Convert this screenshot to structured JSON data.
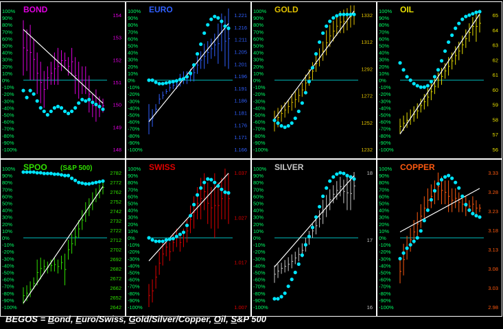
{
  "colors": {
    "background": "#000000",
    "panel_border": "#ffffff",
    "zero_line": "#00c0c0",
    "dots": "#00e5ff",
    "trend_line": "#ffffff",
    "pct_labels": "#00ff66",
    "bond": "#e000e0",
    "euro": "#3060ff",
    "gold": "#e0c000",
    "oil": "#e8e000",
    "spoo": "#30e000",
    "swiss": "#e00000",
    "silver": "#c8c8c8",
    "copper": "#ff5a10"
  },
  "chart_data": [
    {
      "type": "bar",
      "title": "BOND",
      "subtitle": "",
      "color_key": "bond",
      "left_ticks": [
        "100%",
        "90%",
        "80%",
        "70%",
        "60%",
        "50%",
        "40%",
        "30%",
        "20%",
        "10%",
        "0%",
        "-10%",
        "-20%",
        "-30%",
        "-40%",
        "-50%",
        "-60%",
        "-70%",
        "-80%",
        "-90%",
        "-100%"
      ],
      "right_ticks": [
        "154",
        "153",
        "152",
        "151",
        "150",
        "149",
        "148"
      ],
      "ylim": [
        148,
        154
      ],
      "bars": [
        [
          153.6,
          151.2
        ],
        [
          153.2,
          151.4
        ],
        [
          153.4,
          151.0
        ],
        [
          152.8,
          151.0
        ],
        [
          152.2,
          150.4
        ],
        [
          151.8,
          150.0
        ],
        [
          151.4,
          149.8
        ],
        [
          151.6,
          150.6
        ],
        [
          151.8,
          150.8
        ],
        [
          152.2,
          150.8
        ],
        [
          152.4,
          150.8
        ],
        [
          152.3,
          151.4
        ],
        [
          152.2,
          151.5
        ],
        [
          152.0,
          151.2
        ],
        [
          152.4,
          151.2
        ],
        [
          152.0,
          150.4
        ],
        [
          151.8,
          150.2
        ],
        [
          151.6,
          150.4
        ],
        [
          151.6,
          150.4
        ],
        [
          151.2,
          149.6
        ],
        [
          150.4,
          149.4
        ],
        [
          150.6,
          149.2
        ],
        [
          150.3,
          149.4
        ],
        [
          150.2,
          149.6
        ]
      ],
      "dots": [
        -15,
        -25,
        -15,
        -20,
        -30,
        -40,
        -45,
        -50,
        -45,
        -40,
        -38,
        -40,
        -45,
        -48,
        -45,
        -40,
        -33,
        -28,
        -30,
        -28,
        -32,
        -35,
        -38,
        -42
      ],
      "trend": [
        153.2,
        150.0
      ]
    },
    {
      "type": "bar",
      "title": "EURO",
      "subtitle": "",
      "color_key": "euro",
      "left_ticks": [
        "100%",
        "90%",
        "80%",
        "70%",
        "60%",
        "50%",
        "40%",
        "30%",
        "20%",
        "10%",
        "0%",
        "-10%",
        "-20%",
        "-30%",
        "-40%",
        "-50%",
        "-60%",
        "-70%",
        "-80%",
        "-90%",
        "-100%"
      ],
      "right_ticks": [
        "1.221",
        "1.216",
        "1.211",
        "1.205",
        "1.201",
        "1.196",
        "1.191",
        "1.186",
        "1.181",
        "1.176",
        "1.171",
        "1.166"
      ],
      "ylim": [
        1.166,
        1.221
      ],
      "bars": [
        [
          1.184,
          1.172
        ],
        [
          1.182,
          1.175
        ],
        [
          1.184,
          1.18
        ],
        [
          1.188,
          1.184
        ],
        [
          1.189,
          1.186
        ],
        [
          1.19,
          1.188
        ],
        [
          1.192,
          1.189
        ],
        [
          1.193,
          1.19
        ],
        [
          1.194,
          1.19
        ],
        [
          1.196,
          1.191
        ],
        [
          1.197,
          1.192
        ],
        [
          1.197,
          1.192
        ],
        [
          1.198,
          1.193
        ],
        [
          1.2,
          1.193
        ],
        [
          1.203,
          1.196
        ],
        [
          1.205,
          1.198
        ],
        [
          1.208,
          1.198
        ],
        [
          1.209,
          1.2
        ],
        [
          1.21,
          1.202
        ],
        [
          1.212,
          1.203
        ],
        [
          1.216,
          1.2
        ],
        [
          1.22,
          1.205
        ],
        [
          1.219,
          1.199
        ],
        [
          1.222,
          1.198
        ]
      ],
      "dots": [
        0,
        0,
        -3,
        -5,
        -5,
        -4,
        -3,
        -2,
        -1,
        1,
        2,
        5,
        10,
        22,
        38,
        52,
        68,
        80,
        88,
        92,
        90,
        85,
        78,
        75
      ],
      "trend": [
        1.177,
        1.216
      ]
    },
    {
      "type": "bar",
      "title": "GOLD",
      "subtitle": "",
      "color_key": "gold",
      "left_ticks": [
        "100%",
        "90%",
        "80%",
        "70%",
        "60%",
        "50%",
        "40%",
        "30%",
        "20%",
        "10%",
        "0%",
        "-10%",
        "-20%",
        "-30%",
        "-40%",
        "-50%",
        "-60%",
        "-70%",
        "-80%",
        "-90%",
        "-100%"
      ],
      "right_ticks": [
        "1332",
        "1312",
        "1292",
        "1272",
        "1252",
        "1232"
      ],
      "ylim": [
        1232,
        1332
      ],
      "bars": [
        [
          1260,
          1245
        ],
        [
          1262,
          1248
        ],
        [
          1264,
          1252
        ],
        [
          1266,
          1255
        ],
        [
          1268,
          1258
        ],
        [
          1272,
          1260
        ],
        [
          1274,
          1262
        ],
        [
          1276,
          1266
        ],
        [
          1280,
          1270
        ],
        [
          1286,
          1274
        ],
        [
          1290,
          1278
        ],
        [
          1295,
          1282
        ],
        [
          1300,
          1288
        ],
        [
          1305,
          1292
        ],
        [
          1310,
          1296
        ],
        [
          1318,
          1300
        ],
        [
          1322,
          1306
        ],
        [
          1325,
          1310
        ],
        [
          1328,
          1314
        ],
        [
          1332,
          1316
        ],
        [
          1333,
          1316
        ],
        [
          1334,
          1318
        ],
        [
          1336,
          1320
        ],
        [
          1336,
          1322
        ]
      ],
      "dots": [
        -58,
        -62,
        -66,
        -68,
        -66,
        -62,
        -55,
        -45,
        -33,
        -18,
        -2,
        18,
        38,
        55,
        68,
        78,
        85,
        90,
        93,
        95,
        95,
        95,
        95,
        95
      ],
      "trend": [
        1254,
        1332
      ]
    },
    {
      "type": "bar",
      "title": "OIL",
      "subtitle": "",
      "color_key": "oil",
      "left_ticks": [
        "100%",
        "90%",
        "80%",
        "70%",
        "60%",
        "50%",
        "40%",
        "30%",
        "20%",
        "10%",
        "0%",
        "-10%",
        "-20%",
        "-30%",
        "-40%",
        "-50%",
        "-60%",
        "-70%",
        "-80%",
        "-90%",
        "-100%"
      ],
      "right_ticks": [
        "65",
        "64",
        "63",
        "62",
        "61",
        "60",
        "59",
        "58",
        "57",
        "56"
      ],
      "ylim": [
        56,
        65
      ],
      "bars": [
        [
          58.0,
          57.0
        ],
        [
          58.2,
          57.2
        ],
        [
          58.4,
          57.4
        ],
        [
          58.6,
          57.6
        ],
        [
          58.8,
          57.8
        ],
        [
          59.0,
          58.0
        ],
        [
          59.3,
          58.4
        ],
        [
          59.6,
          58.6
        ],
        [
          60.0,
          58.8
        ],
        [
          60.3,
          59.2
        ],
        [
          60.6,
          59.6
        ],
        [
          61.0,
          60.0
        ],
        [
          61.3,
          60.2
        ],
        [
          61.6,
          60.6
        ],
        [
          62.0,
          60.8
        ],
        [
          62.3,
          61.2
        ],
        [
          62.7,
          61.5
        ],
        [
          63.0,
          61.8
        ],
        [
          63.4,
          62.2
        ],
        [
          63.8,
          62.6
        ],
        [
          64.2,
          63.0
        ],
        [
          64.6,
          63.4
        ],
        [
          65.0,
          63.0
        ],
        [
          64.8,
          63.6
        ]
      ],
      "dots": [
        25,
        15,
        5,
        0,
        -5,
        -8,
        -10,
        -10,
        -8,
        -2,
        5,
        15,
        28,
        42,
        55,
        65,
        75,
        82,
        88,
        92,
        94,
        96,
        98,
        99
      ],
      "trend": [
        57.0,
        64.8
      ]
    },
    {
      "type": "bar",
      "title": "SPOO",
      "subtitle": "(S&P 500)",
      "color_key": "spoo",
      "left_ticks": [
        "100%",
        "90%",
        "80%",
        "70%",
        "60%",
        "50%",
        "40%",
        "30%",
        "20%",
        "10%",
        "0%",
        "-10%",
        "-20%",
        "-30%",
        "-40%",
        "-50%",
        "-60%",
        "-70%",
        "-80%",
        "-90%",
        "-100%"
      ],
      "right_ticks": [
        "2782",
        "2772",
        "2762",
        "2752",
        "2742",
        "2732",
        "2722",
        "2712",
        "2702",
        "2692",
        "2682",
        "2672",
        "2662",
        "2652",
        "2642"
      ],
      "ylim": [
        2642,
        2782
      ],
      "bars": [
        [
          2662,
          2645
        ],
        [
          2664,
          2648
        ],
        [
          2668,
          2652
        ],
        [
          2672,
          2660
        ],
        [
          2690,
          2664
        ],
        [
          2692,
          2670
        ],
        [
          2690,
          2676
        ],
        [
          2688,
          2676
        ],
        [
          2690,
          2678
        ],
        [
          2692,
          2678
        ],
        [
          2690,
          2676
        ],
        [
          2694,
          2680
        ],
        [
          2696,
          2664
        ],
        [
          2710,
          2690
        ],
        [
          2716,
          2696
        ],
        [
          2722,
          2704
        ],
        [
          2730,
          2712
        ],
        [
          2740,
          2720
        ],
        [
          2748,
          2728
        ],
        [
          2752,
          2734
        ],
        [
          2758,
          2740
        ],
        [
          2762,
          2748
        ],
        [
          2766,
          2752
        ],
        [
          2770,
          2756
        ]
      ],
      "dots": [
        95,
        95,
        95,
        95,
        94,
        94,
        93,
        93,
        93,
        92,
        92,
        91,
        90,
        90,
        86,
        83,
        80,
        79,
        78,
        78,
        79,
        80,
        81,
        82
      ],
      "trend": [
        2646,
        2764
      ]
    },
    {
      "type": "bar",
      "title": "SWISS",
      "subtitle": "",
      "color_key": "swiss",
      "left_ticks": [
        "100%",
        "90%",
        "80%",
        "70%",
        "60%",
        "50%",
        "40%",
        "30%",
        "20%",
        "10%",
        "0%",
        "-10%",
        "-20%",
        "-30%",
        "-40%",
        "-50%",
        "-60%",
        "-70%",
        "-80%",
        "-90%",
        "-100%"
      ],
      "right_ticks": [
        "1.037",
        "1.027",
        "1.017",
        "1.007"
      ],
      "ylim": [
        1.007,
        1.037
      ],
      "bars": [
        [
          1.012,
          1.007
        ],
        [
          1.013,
          1.008
        ],
        [
          1.016,
          1.011
        ],
        [
          1.019,
          1.014
        ],
        [
          1.021,
          1.016
        ],
        [
          1.022,
          1.018
        ],
        [
          1.021,
          1.017
        ],
        [
          1.023,
          1.019
        ],
        [
          1.024,
          1.02
        ],
        [
          1.023,
          1.019
        ],
        [
          1.024,
          1.02
        ],
        [
          1.026,
          1.021
        ],
        [
          1.029,
          1.023
        ],
        [
          1.031,
          1.024
        ],
        [
          1.033,
          1.026
        ],
        [
          1.035,
          1.026
        ],
        [
          1.036,
          1.028
        ],
        [
          1.034,
          1.025
        ],
        [
          1.033,
          1.024
        ],
        [
          1.036,
          1.022
        ],
        [
          1.034,
          1.024
        ],
        [
          1.035,
          1.026
        ],
        [
          1.037,
          1.026
        ],
        [
          1.036,
          1.025
        ]
      ],
      "dots": [
        0,
        -3,
        -5,
        -5,
        -5,
        -3,
        -2,
        -1,
        2,
        5,
        8,
        18,
        32,
        48,
        62,
        72,
        80,
        85,
        84,
        80,
        75,
        70,
        66,
        65
      ],
      "trend": [
        1.017,
        1.036
      ]
    },
    {
      "type": "bar",
      "title": "SILVER",
      "subtitle": "",
      "color_key": "silver",
      "left_ticks": [
        "100%",
        "90%",
        "80%",
        "70%",
        "60%",
        "50%",
        "40%",
        "30%",
        "20%",
        "10%",
        "0%",
        "-10%",
        "-20%",
        "-30%",
        "-40%",
        "-50%",
        "-60%",
        "-70%",
        "-80%",
        "-90%",
        "-100%"
      ],
      "right_ticks": [
        "18",
        "17",
        "16"
      ],
      "ylim": [
        16,
        18
      ],
      "bars": [
        [
          16.6,
          16.35
        ],
        [
          16.62,
          16.42
        ],
        [
          16.64,
          16.48
        ],
        [
          16.68,
          16.5
        ],
        [
          16.72,
          16.52
        ],
        [
          16.76,
          16.56
        ],
        [
          16.8,
          16.62
        ],
        [
          16.86,
          16.66
        ],
        [
          16.92,
          16.72
        ],
        [
          17.0,
          16.8
        ],
        [
          17.1,
          16.9
        ],
        [
          17.2,
          17.0
        ],
        [
          17.3,
          17.05
        ],
        [
          17.4,
          17.15
        ],
        [
          17.55,
          17.2
        ],
        [
          17.62,
          17.3
        ],
        [
          17.7,
          17.4
        ],
        [
          17.76,
          17.5
        ],
        [
          17.82,
          17.55
        ],
        [
          17.88,
          17.6
        ],
        [
          17.84,
          17.5
        ],
        [
          17.9,
          17.4
        ],
        [
          17.88,
          17.4
        ],
        [
          17.95,
          17.55
        ]
      ],
      "dots": [
        -88,
        -88,
        -85,
        -80,
        -70,
        -60,
        -50,
        -38,
        -25,
        -10,
        2,
        15,
        30,
        45,
        60,
        72,
        82,
        88,
        92,
        94,
        93,
        90,
        88,
        85
      ],
      "trend": [
        16.58,
        17.9
      ]
    },
    {
      "type": "bar",
      "title": "COPPER",
      "subtitle": "",
      "color_key": "copper",
      "left_ticks": [
        "100%",
        "90%",
        "80%",
        "70%",
        "60%",
        "50%",
        "40%",
        "30%",
        "20%",
        "10%",
        "0%",
        "-10%",
        "-20%",
        "-30%",
        "-40%",
        "-50%",
        "-60%",
        "-70%",
        "-80%",
        "-90%",
        "-100%"
      ],
      "right_ticks": [
        "3.33",
        "3.28",
        "3.23",
        "3.18",
        "3.13",
        "3.08",
        "3.03",
        "2.98"
      ],
      "ylim": [
        2.98,
        3.33
      ],
      "bars": [
        [
          3.1,
          3.04
        ],
        [
          3.14,
          3.06
        ],
        [
          3.16,
          3.1
        ],
        [
          3.18,
          3.12
        ],
        [
          3.2,
          3.14
        ],
        [
          3.22,
          3.16
        ],
        [
          3.24,
          3.18
        ],
        [
          3.26,
          3.2
        ],
        [
          3.28,
          3.22
        ],
        [
          3.29,
          3.23
        ],
        [
          3.3,
          3.24
        ],
        [
          3.32,
          3.25
        ],
        [
          3.31,
          3.24
        ],
        [
          3.3,
          3.24
        ],
        [
          3.3,
          3.22
        ],
        [
          3.28,
          3.22
        ],
        [
          3.28,
          3.23
        ],
        [
          3.27,
          3.22
        ],
        [
          3.26,
          3.22
        ],
        [
          3.26,
          3.21
        ],
        [
          3.25,
          3.22
        ],
        [
          3.26,
          3.22
        ],
        [
          3.25,
          3.21
        ],
        [
          3.24,
          3.22
        ]
      ],
      "dots": [
        -30,
        -22,
        -15,
        -10,
        -5,
        0,
        10,
        25,
        40,
        55,
        68,
        78,
        84,
        88,
        90,
        86,
        80,
        72,
        60,
        48,
        40,
        35,
        32,
        30
      ],
      "trend": [
        3.17,
        3.28
      ]
    }
  ],
  "footer": {
    "prefix": "BEGOS  =  ",
    "items": [
      {
        "u": "B",
        "rest": "ond, "
      },
      {
        "u": "E",
        "rest": "uro/Swiss, "
      },
      {
        "u": "G",
        "rest": "old/Silver/Copper, "
      },
      {
        "u": "O",
        "rest": "il, "
      },
      {
        "u": "S",
        "rest": "&P 500"
      }
    ]
  }
}
